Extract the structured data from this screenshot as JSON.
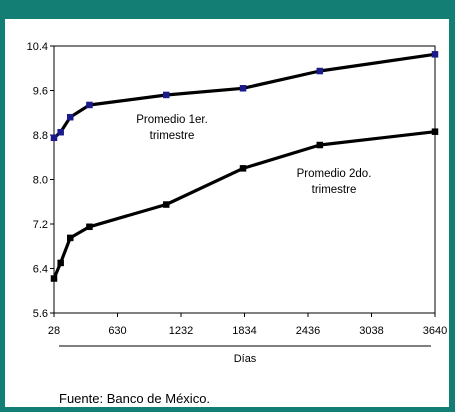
{
  "chart_data": {
    "type": "line",
    "xlabel": "Días",
    "x_ticks": [
      28,
      630,
      1232,
      1834,
      2436,
      3038,
      3640
    ],
    "y_ticks": [
      "10.4",
      "9.6",
      "8.8",
      "8.0",
      "7.2",
      "6.4",
      "5.6"
    ],
    "xlim": [
      28,
      3640
    ],
    "ylim": [
      5.6,
      10.4
    ],
    "grid": false,
    "series": [
      {
        "name": "Promedio 1er. trimestre",
        "label_lines": [
          "Promedio 1er.",
          "trimestre"
        ],
        "color": "#000000",
        "marker_color": "#1a1a8c",
        "x": [
          28,
          91,
          182,
          364,
          1092,
          1820,
          2548,
          3640
        ],
        "y": [
          8.75,
          8.85,
          9.12,
          9.34,
          9.52,
          9.64,
          9.95,
          10.25
        ]
      },
      {
        "name": "Promedio 2do. trimestre",
        "label_lines": [
          "Promedio 2do.",
          "trimestre"
        ],
        "color": "#000000",
        "marker_color": "#000000",
        "x": [
          28,
          91,
          182,
          364,
          1092,
          1820,
          2548,
          3640
        ],
        "y": [
          6.22,
          6.5,
          6.95,
          7.15,
          7.55,
          8.2,
          8.62,
          8.86
        ]
      }
    ]
  },
  "source_note": "Fuente: Banco de México."
}
